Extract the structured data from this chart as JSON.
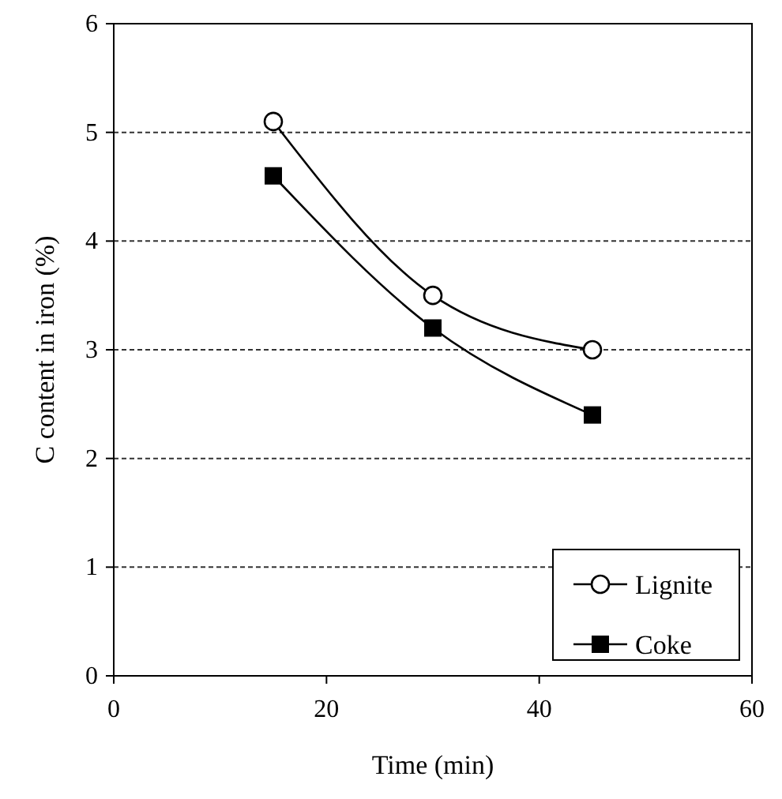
{
  "chart_data": {
    "type": "line",
    "xlabel": "Time (min)",
    "ylabel": "C content in iron (%)",
    "xlim": [
      0,
      60
    ],
    "xticks": [
      0,
      20,
      40,
      60
    ],
    "ylim": [
      0,
      6
    ],
    "yticks": [
      0,
      1,
      2,
      3,
      4,
      5,
      6
    ],
    "grid": "y",
    "legend": "bottom right",
    "line_style": "solid",
    "series": [
      {
        "name": "Lignite",
        "color": "#000000",
        "marker": "circle",
        "x": [
          15,
          30,
          45
        ],
        "values": [
          5.1,
          3.5,
          3.0
        ]
      },
      {
        "name": "Coke",
        "color": "#000000",
        "marker": "square",
        "x": [
          15,
          30,
          45
        ],
        "values": [
          4.6,
          3.2,
          2.4
        ]
      }
    ]
  }
}
